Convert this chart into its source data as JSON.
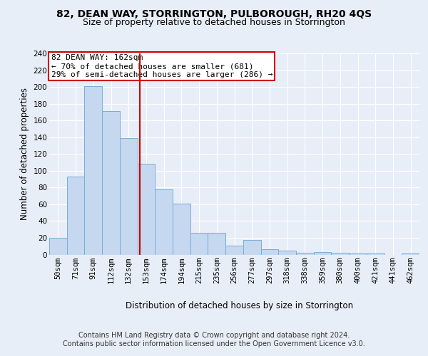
{
  "title": "82, DEAN WAY, STORRINGTON, PULBOROUGH, RH20 4QS",
  "subtitle": "Size of property relative to detached houses in Storrington",
  "xlabel": "Distribution of detached houses by size in Storrington",
  "ylabel": "Number of detached properties",
  "categories": [
    "50sqm",
    "71sqm",
    "91sqm",
    "112sqm",
    "132sqm",
    "153sqm",
    "174sqm",
    "194sqm",
    "215sqm",
    "235sqm",
    "256sqm",
    "277sqm",
    "297sqm",
    "318sqm",
    "338sqm",
    "359sqm",
    "380sqm",
    "400sqm",
    "421sqm",
    "441sqm",
    "462sqm"
  ],
  "values": [
    20,
    93,
    201,
    171,
    139,
    108,
    78,
    61,
    26,
    26,
    11,
    17,
    6,
    5,
    2,
    3,
    2,
    1,
    1,
    0,
    1
  ],
  "bar_color": "#c5d8f0",
  "bar_edge_color": "#7aadd4",
  "annotation_text": "82 DEAN WAY: 162sqm\n← 70% of detached houses are smaller (681)\n29% of semi-detached houses are larger (286) →",
  "annotation_box_color": "#ffffff",
  "annotation_box_edge_color": "#cc0000",
  "background_color": "#e8eef7",
  "plot_bg_color": "#e8eef7",
  "vline_color": "#cc0000",
  "vline_x": 4.62,
  "ylim": [
    0,
    240
  ],
  "yticks": [
    0,
    20,
    40,
    60,
    80,
    100,
    120,
    140,
    160,
    180,
    200,
    220,
    240
  ],
  "footer_line1": "Contains HM Land Registry data © Crown copyright and database right 2024.",
  "footer_line2": "Contains public sector information licensed under the Open Government Licence v3.0.",
  "title_fontsize": 10,
  "subtitle_fontsize": 9,
  "axis_label_fontsize": 8.5,
  "tick_fontsize": 7.5,
  "annotation_fontsize": 8,
  "footer_fontsize": 7
}
